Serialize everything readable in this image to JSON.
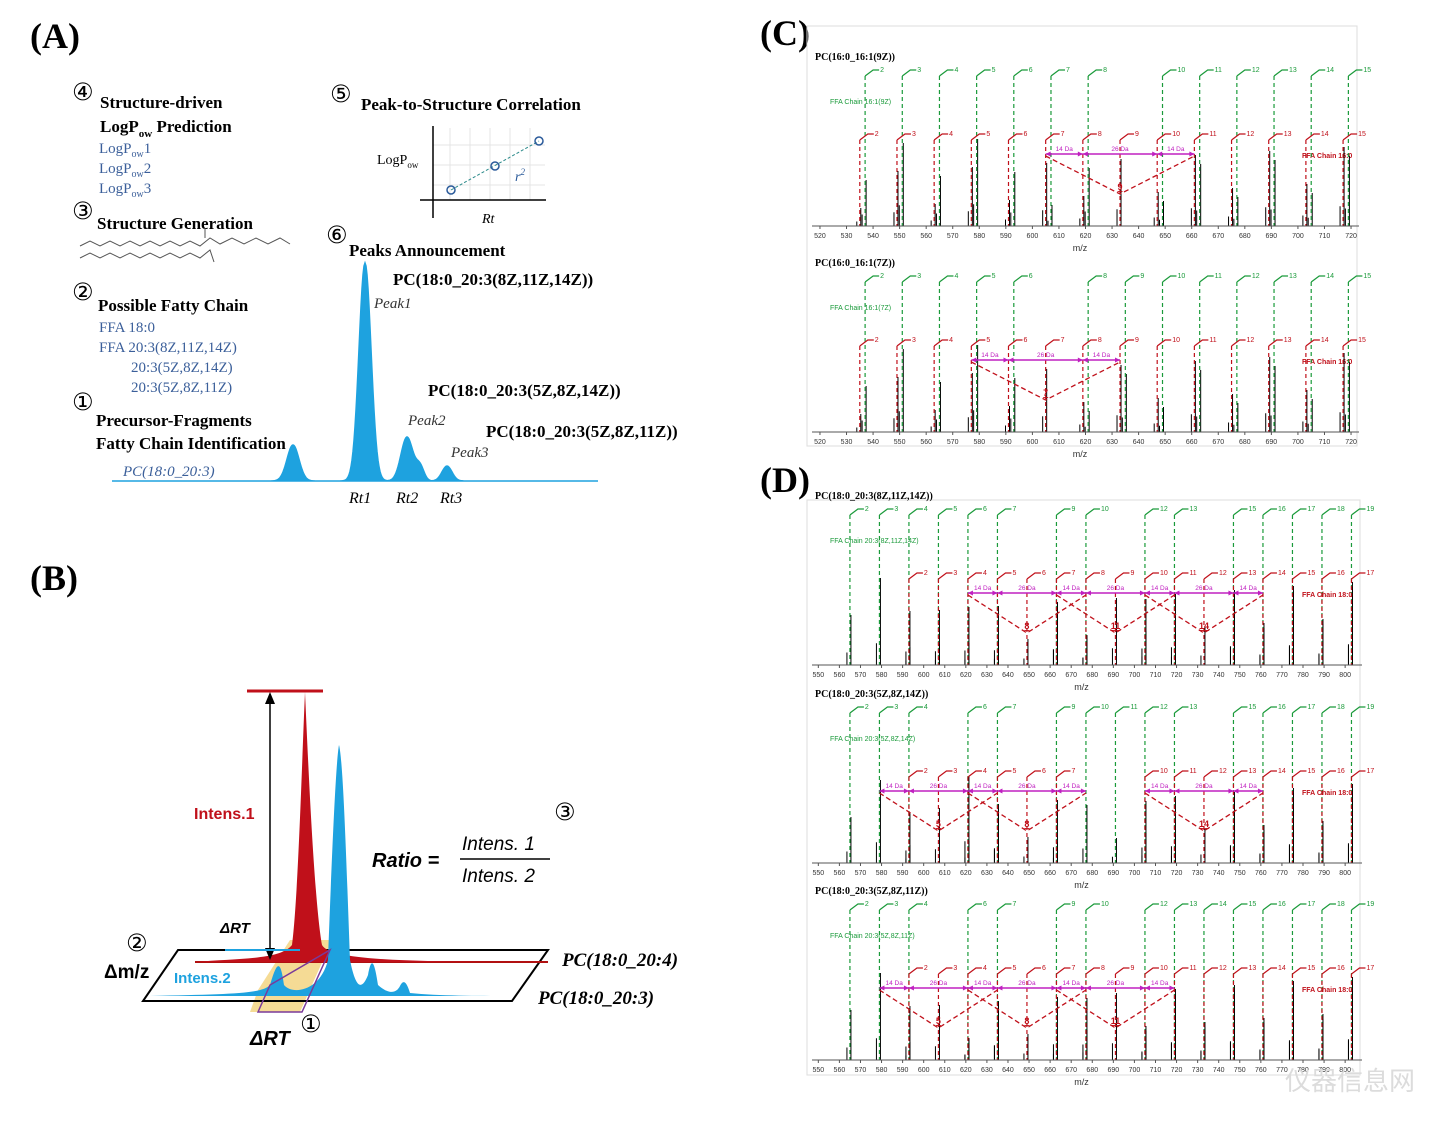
{
  "panel_a": {
    "label": "(A)",
    "step4": {
      "num": "④",
      "title": "Structure-driven",
      "title2": {
        "base": "LogP",
        "sub": "ow",
        "rest": " Prediction"
      },
      "items": [
        {
          "base": "LogP",
          "sub": "ow",
          "rest": "1"
        },
        {
          "base": "LogP",
          "sub": "ow",
          "rest": "2"
        },
        {
          "base": "LogP",
          "sub": "ow",
          "rest": "3"
        }
      ]
    },
    "step5": {
      "num": "⑤",
      "title": "Peak-to-Structure Correlation",
      "y_label": {
        "base": "LogP",
        "sub": "ow"
      },
      "fit_label": {
        "base": "r",
        "sup": "2"
      },
      "x_label": "Rt"
    },
    "step3": {
      "num": "③",
      "title": "Structure Generation"
    },
    "step6": {
      "num": "⑥",
      "title": "Peaks Announcement"
    },
    "step2": {
      "num": "②",
      "title": "Possible Fatty Chain",
      "items": [
        "FFA 18:0",
        "FFA 20:3(8Z,11Z,14Z)",
        "20:3(5Z,8Z,14Z)",
        "20:3(5Z,8Z,11Z)"
      ]
    },
    "step1": {
      "num": "①",
      "title": "Precursor-Fragments",
      "title2": "Fatty Chain Identification",
      "precursor": "PC(18:0_20:3)"
    },
    "peaks": [
      {
        "name": "PC(18:0_20:3(8Z,11Z,14Z))",
        "peak": "Peak1",
        "rt": "Rt1"
      },
      {
        "name": "PC(18:0_20:3(5Z,8Z,14Z))",
        "peak": "Peak2",
        "rt": "Rt2"
      },
      {
        "name": "PC(18:0_20:3(5Z,8Z,11Z))",
        "peak": "Peak3",
        "rt": "Rt3"
      }
    ]
  },
  "panel_b": {
    "label": "(B)",
    "intens1": "Intens.1",
    "intens2": "Intens.2",
    "delta_rt_top": "ΔRT",
    "delta_mz": "Δm/z",
    "delta_rt_bottom": "ΔRT",
    "num1": "①",
    "num2": "②",
    "num3": "③",
    "ratio": {
      "lhs": "Ratio =",
      "num": "Intens. 1",
      "den": "Intens. 2"
    },
    "lipid_top": "PC(18:0_20:4)",
    "lipid_bottom": "PC(18:0_20:3)"
  },
  "panel_c": {
    "label": "(C)",
    "spectra": [
      {
        "title": "PC(16:0_16:1(9Z))",
        "green_chain": "FFA Chain 16:1(9Z)",
        "red_chain": "FFA Chain 16:0",
        "xlabel": "m/z",
        "xlim": [
          517,
          723
        ],
        "xticks": [
          520,
          530,
          540,
          550,
          560,
          570,
          580,
          590,
          600,
          610,
          620,
          630,
          640,
          650,
          660,
          670,
          680,
          690,
          700,
          710,
          720
        ],
        "green": {
          "labels": [
            "2",
            "3",
            "4",
            "5",
            "6",
            "7",
            "8",
            "10",
            "11",
            "12",
            "13",
            "14",
            "15"
          ],
          "mz": [
            537,
            551,
            565,
            579,
            593,
            607,
            621,
            649,
            663,
            677,
            691,
            705,
            719
          ]
        },
        "red": {
          "labels": [
            "2",
            "3",
            "4",
            "5",
            "6",
            "7",
            "8",
            "9",
            "10",
            "11",
            "12",
            "13",
            "14",
            "15"
          ],
          "mz": [
            535,
            549,
            563,
            577,
            591,
            605,
            619,
            633,
            647,
            661,
            675,
            689,
            703,
            717
          ]
        },
        "da": [
          {
            "label": "14 Da",
            "from": 605,
            "to": 619
          },
          {
            "label": "26 Da",
            "from": 619,
            "to": 647
          },
          {
            "label": "14 Da",
            "from": 647,
            "to": 661
          }
        ],
        "centers": [
          {
            "label": "9",
            "mz": 633
          }
        ]
      },
      {
        "title": "PC(16:0_16:1(7Z))",
        "green_chain": "FFA Chain 16:1(7Z)",
        "red_chain": "FFA Chain 16:0",
        "xlabel": "m/z",
        "xlim": [
          517,
          723
        ],
        "xticks": [
          520,
          530,
          540,
          550,
          560,
          570,
          580,
          590,
          600,
          610,
          620,
          630,
          640,
          650,
          660,
          670,
          680,
          690,
          700,
          710,
          720
        ],
        "green": {
          "labels": [
            "2",
            "3",
            "4",
            "5",
            "6",
            "8",
            "9",
            "10",
            "11",
            "12",
            "13",
            "14",
            "15"
          ],
          "mz": [
            537,
            551,
            565,
            579,
            593,
            621,
            635,
            649,
            663,
            677,
            691,
            705,
            719
          ]
        },
        "red": {
          "labels": [
            "2",
            "3",
            "4",
            "5",
            "6",
            "7",
            "8",
            "9",
            "10",
            "11",
            "12",
            "13",
            "14",
            "15"
          ],
          "mz": [
            535,
            549,
            563,
            577,
            591,
            605,
            619,
            633,
            647,
            661,
            675,
            689,
            703,
            717
          ]
        },
        "da": [
          {
            "label": "14 Da",
            "from": 577,
            "to": 591
          },
          {
            "label": "26 Da",
            "from": 591,
            "to": 619
          },
          {
            "label": "14 Da",
            "from": 619,
            "to": 633
          }
        ],
        "centers": [
          {
            "label": "7",
            "mz": 605
          }
        ]
      }
    ]
  },
  "panel_d": {
    "label": "(D)",
    "spectra": [
      {
        "title": "PC(18:0_20:3(8Z,11Z,14Z))",
        "green_chain": "FFA Chain 20:3(8Z,11Z,14Z)",
        "red_chain": "FFA Chain 18:0",
        "xlabel": "m/z",
        "xlim": [
          547,
          808
        ],
        "xticks": [
          550,
          560,
          570,
          580,
          590,
          600,
          610,
          620,
          630,
          640,
          650,
          660,
          670,
          680,
          690,
          700,
          710,
          720,
          730,
          740,
          750,
          760,
          770,
          780,
          790,
          800
        ],
        "green": {
          "labels": [
            "2",
            "3",
            "4",
            "5",
            "6",
            "7",
            "9",
            "10",
            "12",
            "13",
            "15",
            "16",
            "17",
            "18",
            "19"
          ],
          "mz": [
            565,
            579,
            593,
            607,
            621,
            635,
            663,
            677,
            705,
            719,
            747,
            761,
            775,
            789,
            803
          ]
        },
        "red": {
          "labels": [
            "2",
            "3",
            "4",
            "5",
            "6",
            "7",
            "8",
            "9",
            "10",
            "11",
            "12",
            "13",
            "14",
            "15",
            "16",
            "17"
          ],
          "mz": [
            593,
            607,
            621,
            635,
            649,
            663,
            677,
            691,
            705,
            719,
            733,
            747,
            761,
            775,
            789,
            803
          ]
        },
        "da": [
          {
            "label": "14 Da",
            "from": 621,
            "to": 635
          },
          {
            "label": "26 Da",
            "from": 635,
            "to": 663
          },
          {
            "label": "14 Da",
            "from": 663,
            "to": 677
          },
          {
            "label": "26 Da",
            "from": 677,
            "to": 705
          },
          {
            "label": "14 Da",
            "from": 705,
            "to": 719
          },
          {
            "label": "26 Da",
            "from": 719,
            "to": 747
          },
          {
            "label": "14 Da",
            "from": 747,
            "to": 761
          }
        ],
        "centers": [
          {
            "label": "8",
            "mz": 649
          },
          {
            "label": "11",
            "mz": 691
          },
          {
            "label": "14",
            "mz": 733
          }
        ]
      },
      {
        "title": "PC(18:0_20:3(5Z,8Z,14Z))",
        "green_chain": "FFA Chain 20:3(5Z,8Z,14Z)",
        "red_chain": "FFA Chain 18:0",
        "xlabel": "m/z",
        "xlim": [
          547,
          808
        ],
        "xticks": [
          550,
          560,
          570,
          580,
          590,
          600,
          610,
          620,
          630,
          640,
          650,
          660,
          670,
          680,
          690,
          700,
          710,
          720,
          730,
          740,
          750,
          760,
          770,
          780,
          790,
          800
        ],
        "green": {
          "labels": [
            "2",
            "3",
            "4",
            "6",
            "7",
            "9",
            "10",
            "11",
            "12",
            "13",
            "15",
            "16",
            "17",
            "18",
            "19"
          ],
          "mz": [
            565,
            579,
            593,
            621,
            635,
            663,
            677,
            691,
            705,
            719,
            747,
            761,
            775,
            789,
            803
          ]
        },
        "red": {
          "labels": [
            "2",
            "3",
            "4",
            "5",
            "6",
            "7",
            "10",
            "11",
            "12",
            "13",
            "14",
            "15",
            "16",
            "17"
          ],
          "mz": [
            593,
            607,
            621,
            635,
            649,
            663,
            705,
            719,
            733,
            747,
            761,
            775,
            789,
            803
          ]
        },
        "da": [
          {
            "label": "14 Da",
            "from": 579,
            "to": 593
          },
          {
            "label": "26 Da",
            "from": 593,
            "to": 621
          },
          {
            "label": "14 Da",
            "from": 621,
            "to": 635
          },
          {
            "label": "26 Da",
            "from": 635,
            "to": 663
          },
          {
            "label": "14 Da",
            "from": 663,
            "to": 677
          },
          {
            "label": "14 Da",
            "from": 705,
            "to": 719
          },
          {
            "label": "26 Da",
            "from": 719,
            "to": 747
          },
          {
            "label": "14 Da",
            "from": 747,
            "to": 761
          }
        ],
        "centers": [
          {
            "label": "5",
            "mz": 607
          },
          {
            "label": "8",
            "mz": 649
          },
          {
            "label": "14",
            "mz": 733
          }
        ]
      },
      {
        "title": "PC(18:0_20:3(5Z,8Z,11Z))",
        "green_chain": "FFA Chain 20:3(5Z,8Z,11Z)",
        "red_chain": "FFA Chain 18:0",
        "xlabel": "m/z",
        "xlim": [
          547,
          808
        ],
        "xticks": [
          550,
          560,
          570,
          580,
          590,
          600,
          610,
          620,
          630,
          640,
          650,
          660,
          670,
          680,
          690,
          700,
          710,
          720,
          730,
          740,
          750,
          760,
          770,
          780,
          790,
          800
        ],
        "green": {
          "labels": [
            "2",
            "3",
            "4",
            "6",
            "7",
            "9",
            "10",
            "12",
            "13",
            "14",
            "15",
            "16",
            "17",
            "18",
            "19"
          ],
          "mz": [
            565,
            579,
            593,
            621,
            635,
            663,
            677,
            705,
            719,
            733,
            747,
            761,
            775,
            789,
            803
          ]
        },
        "red": {
          "labels": [
            "2",
            "3",
            "4",
            "5",
            "6",
            "7",
            "8",
            "9",
            "10",
            "11",
            "12",
            "13",
            "14",
            "15",
            "16",
            "17"
          ],
          "mz": [
            593,
            607,
            621,
            635,
            649,
            663,
            677,
            691,
            705,
            719,
            733,
            747,
            761,
            775,
            789,
            803
          ]
        },
        "da": [
          {
            "label": "14 Da",
            "from": 579,
            "to": 593
          },
          {
            "label": "26 Da",
            "from": 593,
            "to": 621
          },
          {
            "label": "14 Da",
            "from": 621,
            "to": 635
          },
          {
            "label": "26 Da",
            "from": 635,
            "to": 663
          },
          {
            "label": "14 Da",
            "from": 663,
            "to": 677
          },
          {
            "label": "26 Da",
            "from": 677,
            "to": 705
          },
          {
            "label": "14 Da",
            "from": 705,
            "to": 719
          }
        ],
        "centers": [
          {
            "label": "5",
            "mz": 607
          },
          {
            "label": "8",
            "mz": 649
          },
          {
            "label": "11",
            "mz": 691
          }
        ]
      }
    ]
  },
  "watermark": "仪器信息网"
}
